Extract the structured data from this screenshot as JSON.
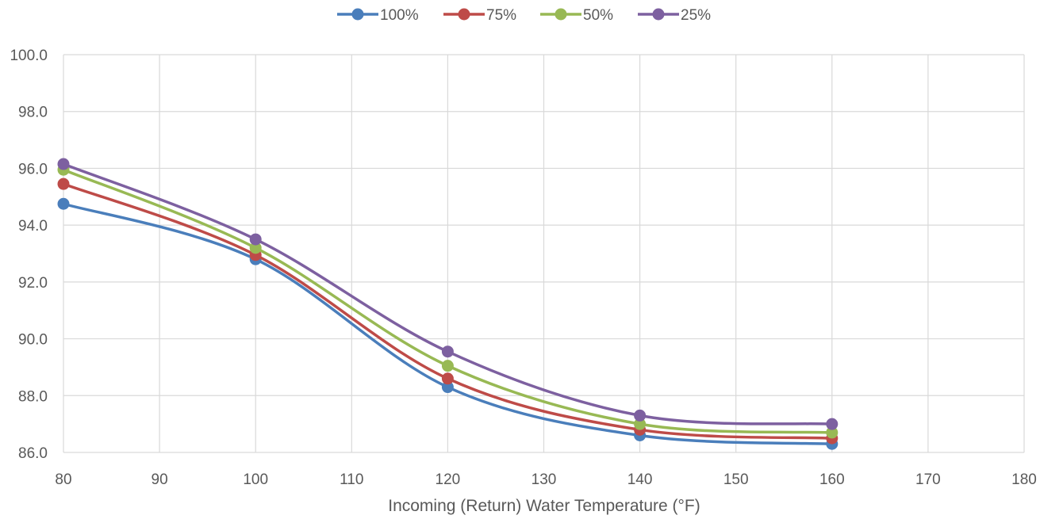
{
  "chart_data": {
    "type": "line",
    "title": "",
    "xlabel": "Incoming (Return) Water Temperature (°F)",
    "ylabel": "",
    "xlim": [
      80,
      180
    ],
    "ylim": [
      86.0,
      100.0
    ],
    "x_ticks": [
      80,
      90,
      100,
      110,
      120,
      130,
      140,
      150,
      160,
      170,
      180
    ],
    "y_ticks": [
      "86.0",
      "88.0",
      "90.0",
      "92.0",
      "94.0",
      "96.0",
      "98.0",
      "100.0"
    ],
    "grid": true,
    "smooth": true,
    "legend_position": "top",
    "x": [
      80,
      100,
      120,
      140,
      160
    ],
    "series": [
      {
        "name": "100%",
        "color": "#4a7ebb",
        "values": [
          94.75,
          92.8,
          88.3,
          86.6,
          86.3
        ]
      },
      {
        "name": "75%",
        "color": "#be4b48",
        "values": [
          95.45,
          92.95,
          88.6,
          86.8,
          86.5
        ]
      },
      {
        "name": "50%",
        "color": "#98b954",
        "values": [
          95.95,
          93.2,
          89.05,
          87.0,
          86.7
        ]
      },
      {
        "name": "25%",
        "color": "#7d60a0",
        "values": [
          96.15,
          93.5,
          89.55,
          87.3,
          87.0
        ]
      }
    ]
  }
}
